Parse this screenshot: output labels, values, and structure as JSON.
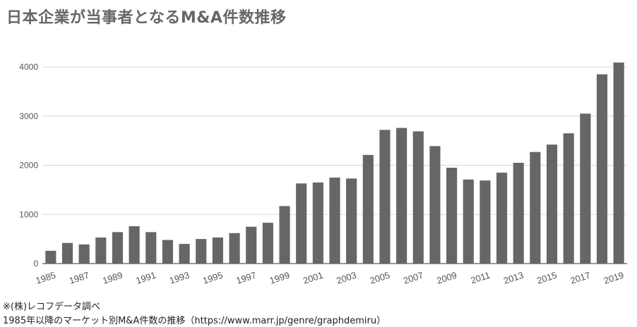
{
  "title": "日本企業が当事者となるM&A件数推移",
  "notes": {
    "source": "※(株)レコフデータ調べ",
    "caption": "1985年以降のマーケット別M&A件数の推移（https://www.marr.jp/genre/graphdemiru）"
  },
  "chart_data": {
    "type": "bar",
    "title": "日本企業が当事者となるM&A件数推移",
    "xlabel": "",
    "ylabel": "",
    "ylim": [
      0,
      4000
    ],
    "yticks": [
      0,
      1000,
      2000,
      3000,
      4000
    ],
    "grid": true,
    "bar_color": "#666666",
    "categories": [
      "1985",
      "1986",
      "1987",
      "1988",
      "1989",
      "1990",
      "1991",
      "1992",
      "1993",
      "1994",
      "1995",
      "1996",
      "1997",
      "1998",
      "1999",
      "2000",
      "2001",
      "2002",
      "2003",
      "2004",
      "2005",
      "2006",
      "2007",
      "2008",
      "2009",
      "2010",
      "2011",
      "2012",
      "2013",
      "2014",
      "2015",
      "2016",
      "2017",
      "2018",
      "2019"
    ],
    "x_tick_labels": [
      "1985",
      "1987",
      "1989",
      "1991",
      "1993",
      "1995",
      "1997",
      "1999",
      "2001",
      "2003",
      "2005",
      "2007",
      "2009",
      "2011",
      "2013",
      "2015",
      "2017",
      "2019"
    ],
    "values": [
      260,
      420,
      390,
      530,
      640,
      760,
      640,
      480,
      400,
      500,
      530,
      620,
      750,
      830,
      1170,
      1630,
      1650,
      1750,
      1730,
      2210,
      2720,
      2760,
      2690,
      2390,
      1950,
      1710,
      1690,
      1850,
      2050,
      2270,
      2420,
      2650,
      3050,
      3850,
      4090
    ]
  }
}
